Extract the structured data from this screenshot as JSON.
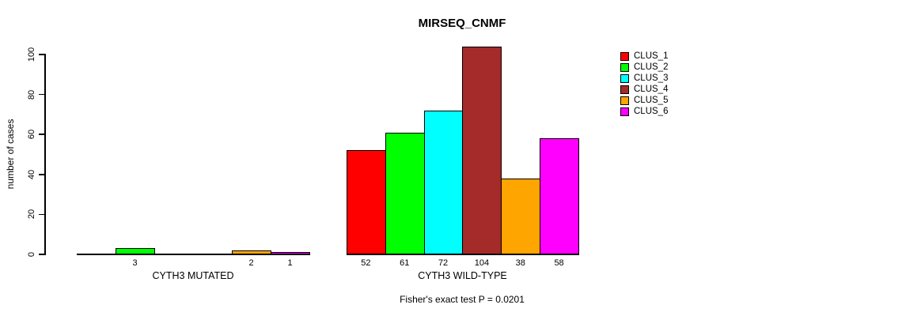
{
  "chart_data": {
    "type": "bar",
    "title": "MIRSEQ_CNMF",
    "ylabel": "number of cases",
    "xlabel": "",
    "ylim": [
      0,
      100
    ],
    "yticks": [
      0,
      20,
      40,
      60,
      80,
      100
    ],
    "grid": false,
    "legend_position": "right",
    "categories": [
      "CYTH3 MUTATED",
      "CYTH3 WILD-TYPE"
    ],
    "series": [
      {
        "name": "CLUS_1",
        "color": "#FF0000",
        "values": [
          0,
          52
        ]
      },
      {
        "name": "CLUS_2",
        "color": "#00FF00",
        "values": [
          3,
          61
        ]
      },
      {
        "name": "CLUS_3",
        "color": "#00FFFF",
        "values": [
          0,
          72
        ]
      },
      {
        "name": "CLUS_4",
        "color": "#A52A2A",
        "values": [
          0,
          104
        ]
      },
      {
        "name": "CLUS_5",
        "color": "#FFA500",
        "values": [
          2,
          38
        ]
      },
      {
        "name": "CLUS_6",
        "color": "#FF00FF",
        "values": [
          1,
          58
        ]
      }
    ],
    "bar_value_labels": {
      "CYTH3 MUTATED": [
        "",
        "3",
        "",
        "",
        "2",
        "1"
      ],
      "CYTH3 WILD-TYPE": [
        "52",
        "61",
        "72",
        "104",
        "38",
        "58"
      ]
    },
    "annotation": "Fisher's exact test P = 0.0201"
  }
}
